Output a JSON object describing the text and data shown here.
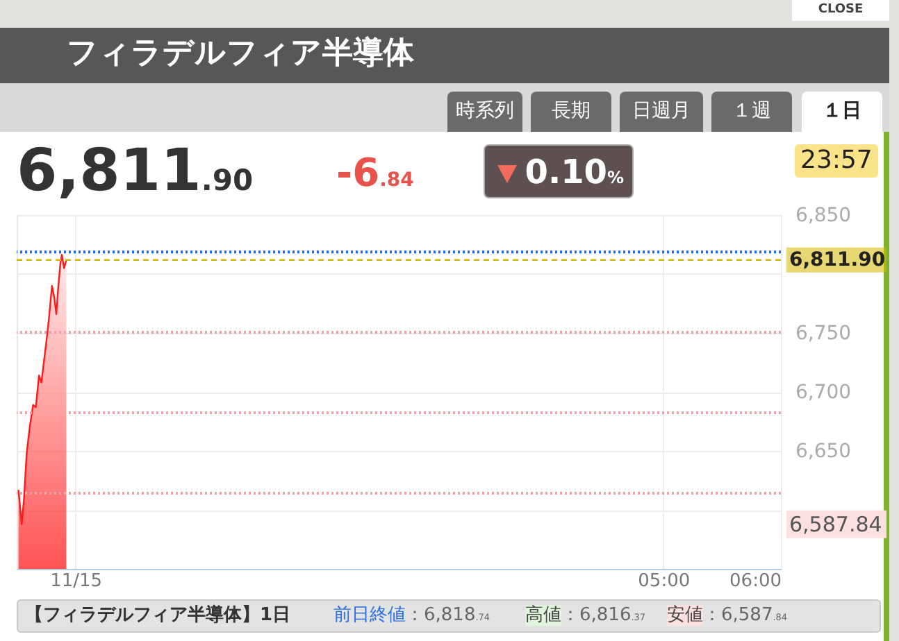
{
  "chart_data": {
    "type": "area",
    "title": "フィラデルフィア半導体",
    "x": [
      -0.485,
      -0.457,
      -0.438,
      -0.415,
      -0.388,
      -0.36,
      -0.337,
      -0.31,
      -0.29,
      -0.264,
      -0.24,
      -0.224,
      -0.2,
      -0.18,
      -0.163,
      -0.147,
      -0.128,
      -0.116,
      -0.097,
      -0.078
    ],
    "values": [
      6617,
      6587.84,
      6609,
      6648,
      6671,
      6689,
      6687,
      6714,
      6708,
      6729,
      6749,
      6764,
      6790,
      6780,
      6766,
      6788,
      6809,
      6816.37,
      6805,
      6812
    ],
    "color": "#ff1a1a",
    "xlim": [
      -0.5,
      6
    ],
    "xticks": [
      {
        "value": 0,
        "label": "11/15"
      },
      {
        "value": 5,
        "label": "05:00"
      },
      {
        "value": 6,
        "label": "06:00"
      }
    ],
    "ylim": [
      6550,
      6850
    ],
    "yticks": [
      {
        "value": 6600,
        "label": null
      },
      {
        "value": 6650,
        "label": "6,650"
      },
      {
        "value": 6700,
        "label": "6,700"
      },
      {
        "value": 6750,
        "label": "6,750"
      },
      {
        "value": 6800,
        "label": null
      },
      {
        "value": 6850,
        "label": "6,850"
      }
    ],
    "grid": true,
    "ref_lines": [
      {
        "axis": "y",
        "value": 6818.74,
        "color": "#1a66ff",
        "line_style": "dotted"
      },
      {
        "axis": "y",
        "value": 6811.9,
        "label": "6,811.90",
        "color": "#d4b800",
        "line_style": "dashed"
      },
      {
        "axis": "y",
        "value": 6750.55,
        "color": "#f2a0a8",
        "line_style": "dotted"
      },
      {
        "axis": "y",
        "value": 6682.37,
        "color": "#f2a0a8",
        "line_style": "dotted"
      },
      {
        "axis": "y",
        "value": 6614.18,
        "color": "#f2a0a8",
        "line_style": "dotted"
      }
    ],
    "annotations": [
      "CLOSE",
      "時系列",
      "長期",
      "日週月",
      "１週",
      "１日",
      "6,811.90",
      "-6.84",
      "0.10%",
      "23:57",
      "【フィラデルフィア半導体】1日",
      "前日終値：6,818.74",
      "高値：6,816.37",
      "安値：6,587.84",
      "6,587.84"
    ]
  }
}
